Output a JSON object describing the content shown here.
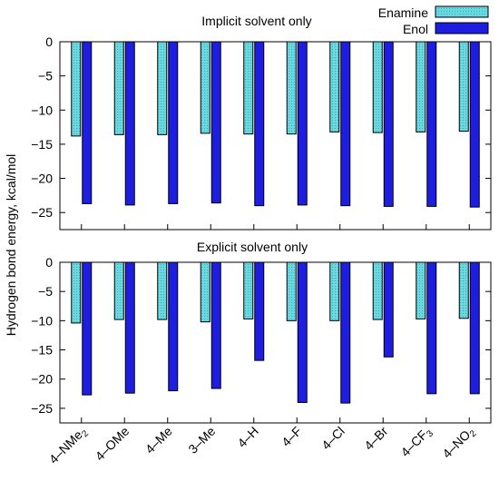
{
  "figure": {
    "ylabel": "Hydrogen bond energy, kcal/mol",
    "legend": {
      "placement": "top-right",
      "entries": [
        {
          "name": "Enamine",
          "color": "#6ad8e0"
        },
        {
          "name": "Enol",
          "color": "#1e1ee0"
        }
      ]
    }
  },
  "chart_data": [
    {
      "type": "bar",
      "title": "Implicit solvent only",
      "ylim": [
        -27.5,
        0
      ],
      "yticks": [
        0,
        -5,
        -10,
        -15,
        -20,
        -25
      ],
      "categories": [
        "4–NMe₂",
        "4–OMe",
        "4–Me",
        "3–Me",
        "4–H",
        "4–F",
        "4–Cl",
        "4–Br",
        "4–CF₃",
        "4–NO₂"
      ],
      "series": [
        {
          "name": "Enamine",
          "color": "#6ad8e0",
          "values": [
            -13.8,
            -13.6,
            -13.6,
            -13.4,
            -13.5,
            -13.5,
            -13.2,
            -13.3,
            -13.2,
            -13.1
          ]
        },
        {
          "name": "Enol",
          "color": "#1e1ee0",
          "values": [
            -23.7,
            -23.9,
            -23.7,
            -23.6,
            -24.0,
            -23.9,
            -24.0,
            -24.1,
            -24.1,
            -24.2
          ]
        }
      ],
      "grid": false,
      "legend": "top-right"
    },
    {
      "type": "bar",
      "title": "Explicit solvent only",
      "ylim": [
        -27.5,
        0
      ],
      "yticks": [
        0,
        -5,
        -10,
        -15,
        -20,
        -25
      ],
      "categories": [
        "4–NMe₂",
        "4–OMe",
        "4–Me",
        "3–Me",
        "4–H",
        "4–F",
        "4–Cl",
        "4–Br",
        "4–CF₃",
        "4–NO₂"
      ],
      "series": [
        {
          "name": "Enamine",
          "color": "#6ad8e0",
          "values": [
            -10.4,
            -9.8,
            -9.8,
            -10.2,
            -9.7,
            -10.0,
            -10.0,
            -9.8,
            -9.7,
            -9.6
          ]
        },
        {
          "name": "Enol",
          "color": "#1e1ee0",
          "values": [
            -22.7,
            -22.4,
            -22.0,
            -21.6,
            -16.8,
            -24.0,
            -24.1,
            -16.2,
            -22.5,
            -22.5
          ]
        }
      ],
      "grid": false
    }
  ]
}
